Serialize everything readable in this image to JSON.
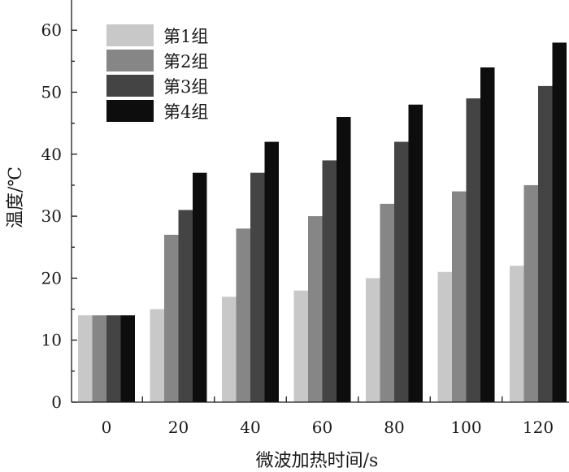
{
  "chart_data": {
    "type": "bar",
    "categories": [
      "0",
      "20",
      "40",
      "60",
      "80",
      "100",
      "120"
    ],
    "series": [
      {
        "name": "第1组",
        "color": "#c8c8c8",
        "values": [
          14,
          15,
          17,
          18,
          20,
          21,
          22
        ]
      },
      {
        "name": "第2组",
        "color": "#868686",
        "values": [
          14,
          27,
          28,
          30,
          32,
          34,
          35
        ]
      },
      {
        "name": "第3组",
        "color": "#444444",
        "values": [
          14,
          31,
          37,
          39,
          42,
          49,
          51
        ]
      },
      {
        "name": "第4组",
        "color": "#0d0d0d",
        "values": [
          14,
          37,
          42,
          46,
          48,
          54,
          58
        ]
      }
    ],
    "title": "",
    "xlabel": "微波加热时间/s",
    "ylabel": "温度/℃",
    "ylim": [
      0,
      65
    ],
    "yticks": [
      0,
      10,
      20,
      30,
      40,
      50,
      60
    ],
    "grid": false,
    "legend_position": "top-left"
  }
}
